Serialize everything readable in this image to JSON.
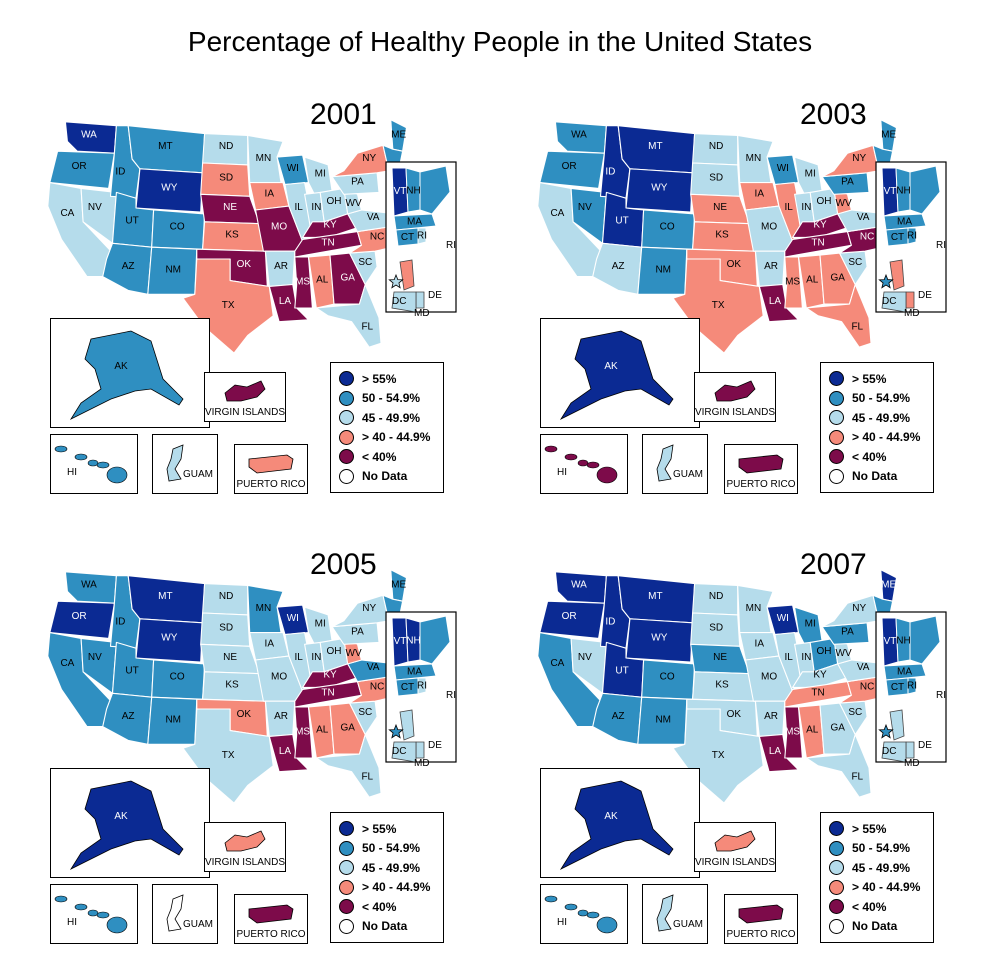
{
  "title": "Percentage of Healthy People in the United States",
  "colors": {
    "gt55": "#0b2a93",
    "r50": "#2f8fc1",
    "r45": "#b5dceb",
    "r40": "#f58a7a",
    "lt40": "#7d0b4a",
    "nodata": "#ffffff",
    "border": "#ffffff"
  },
  "legend": [
    {
      "key": "gt55",
      "label": "> 55%"
    },
    {
      "key": "r50",
      "label": "50 - 54.9%"
    },
    {
      "key": "r45",
      "label": "45 - 49.9%"
    },
    {
      "key": "r40",
      "label": "> 40 - 44.9%"
    },
    {
      "key": "lt40",
      "label": "< 40%"
    },
    {
      "key": "nodata",
      "label": "No Data"
    }
  ],
  "inset_labels": {
    "virgin_islands": "VIRGIN ISLANDS",
    "guam": "GUAM",
    "puerto_rico": "PUERTO RICO",
    "hawaii": "HI",
    "alaska": "AK",
    "dc": "DC",
    "md": "MD",
    "de": "DE",
    "ri": "RI",
    "nj": "NJ",
    "ct": "CT",
    "ma": "MA",
    "nh": "NH",
    "vt": "VT"
  },
  "maps": [
    {
      "year": "2001",
      "states": {
        "WA": "gt55",
        "OR": "r50",
        "CA": "r45",
        "NV": "r45",
        "ID": "r50",
        "MT": "r50",
        "WY": "gt55",
        "UT": "r50",
        "CO": "r50",
        "AZ": "r50",
        "NM": "r50",
        "ND": "r45",
        "SD": "r40",
        "NE": "lt40",
        "KS": "r40",
        "OK": "lt40",
        "TX": "r40",
        "MN": "r45",
        "IA": "r40",
        "MO": "lt40",
        "AR": "r45",
        "LA": "lt40",
        "WI": "r50",
        "IL": "r45",
        "MI": "r45",
        "IN": "r45",
        "OH": "r45",
        "KY": "lt40",
        "TN": "lt40",
        "MS": "lt40",
        "AL": "r40",
        "GA": "lt40",
        "FL": "r45",
        "SC": "r45",
        "NC": "r40",
        "VA": "r45",
        "WV": "r45",
        "PA": "r45",
        "NY": "r40",
        "ME": "r50",
        "NE_REG": "r50",
        "VT": "gt55",
        "NH": "r50",
        "AK": "r50",
        "HI": "r50",
        "GU": "r45",
        "PR": "r40",
        "VI": "lt40",
        "DC": "r45",
        "MD": "r45",
        "DE": "r45",
        "NJ": "r40",
        "CT": "r50",
        "MA": "r50",
        "RI": "r45"
      }
    },
    {
      "year": "2003",
      "states": {
        "WA": "r50",
        "OR": "r50",
        "CA": "r45",
        "NV": "r50",
        "ID": "gt55",
        "MT": "gt55",
        "WY": "gt55",
        "UT": "gt55",
        "CO": "r50",
        "AZ": "r45",
        "NM": "r50",
        "ND": "r45",
        "SD": "r45",
        "NE": "r40",
        "KS": "r40",
        "OK": "r40",
        "TX": "r40",
        "MN": "r45",
        "IA": "r40",
        "MO": "r45",
        "AR": "r45",
        "LA": "lt40",
        "WI": "r50",
        "IL": "r40",
        "MI": "r45",
        "IN": "r45",
        "OH": "r45",
        "KY": "lt40",
        "TN": "lt40",
        "MS": "r40",
        "AL": "r40",
        "GA": "r40",
        "FL": "r40",
        "SC": "r45",
        "NC": "lt40",
        "VA": "r45",
        "WV": "r40",
        "PA": "r50",
        "NY": "r40",
        "ME": "r50",
        "NE_REG": "r50",
        "VT": "gt55",
        "NH": "r50",
        "AK": "gt55",
        "HI": "lt40",
        "GU": "r45",
        "PR": "lt40",
        "VI": "lt40",
        "DC": "r50",
        "MD": "r45",
        "DE": "r40",
        "NJ": "r40",
        "CT": "r50",
        "MA": "r50",
        "RI": "r50"
      }
    },
    {
      "year": "2005",
      "states": {
        "WA": "r50",
        "OR": "gt55",
        "CA": "r50",
        "NV": "r50",
        "ID": "r50",
        "MT": "gt55",
        "WY": "gt55",
        "UT": "r50",
        "CO": "r50",
        "AZ": "r50",
        "NM": "r50",
        "ND": "r45",
        "SD": "r45",
        "NE": "r45",
        "KS": "r45",
        "OK": "r40",
        "TX": "r45",
        "MN": "r50",
        "IA": "r45",
        "MO": "r45",
        "AR": "r45",
        "LA": "lt40",
        "WI": "gt55",
        "IL": "r45",
        "MI": "r45",
        "IN": "r45",
        "OH": "r45",
        "KY": "lt40",
        "TN": "lt40",
        "MS": "lt40",
        "AL": "r40",
        "GA": "r40",
        "FL": "r45",
        "SC": "r45",
        "NC": "r40",
        "VA": "r50",
        "WV": "r40",
        "PA": "r45",
        "NY": "r45",
        "ME": "r50",
        "NE_REG": "r50",
        "VT": "gt55",
        "NH": "gt55",
        "AK": "gt55",
        "HI": "r50",
        "GU": "nodata",
        "PR": "lt40",
        "VI": "r40",
        "DC": "r50",
        "MD": "r45",
        "DE": "r45",
        "NJ": "r45",
        "CT": "r50",
        "MA": "r50",
        "RI": "r45"
      }
    },
    {
      "year": "2007",
      "states": {
        "WA": "gt55",
        "OR": "gt55",
        "CA": "r50",
        "NV": "r45",
        "ID": "gt55",
        "MT": "gt55",
        "WY": "gt55",
        "UT": "gt55",
        "CO": "r50",
        "AZ": "r50",
        "NM": "r50",
        "ND": "r45",
        "SD": "r45",
        "NE": "r50",
        "KS": "r45",
        "OK": "r45",
        "TX": "r45",
        "MN": "r45",
        "IA": "r45",
        "MO": "r45",
        "AR": "r45",
        "LA": "lt40",
        "WI": "gt55",
        "IL": "r45",
        "MI": "r50",
        "IN": "r45",
        "OH": "r50",
        "KY": "r45",
        "TN": "r40",
        "MS": "lt40",
        "AL": "r40",
        "GA": "r45",
        "FL": "r45",
        "SC": "r45",
        "NC": "r40",
        "VA": "r45",
        "WV": "r45",
        "PA": "r50",
        "NY": "r45",
        "ME": "gt55",
        "NE_REG": "r50",
        "VT": "gt55",
        "NH": "r50",
        "AK": "gt55",
        "HI": "r50",
        "GU": "r45",
        "PR": "lt40",
        "VI": "r40",
        "DC": "r50",
        "MD": "r45",
        "DE": "r45",
        "NJ": "r45",
        "CT": "r50",
        "MA": "r50",
        "RI": "r50"
      }
    }
  ]
}
